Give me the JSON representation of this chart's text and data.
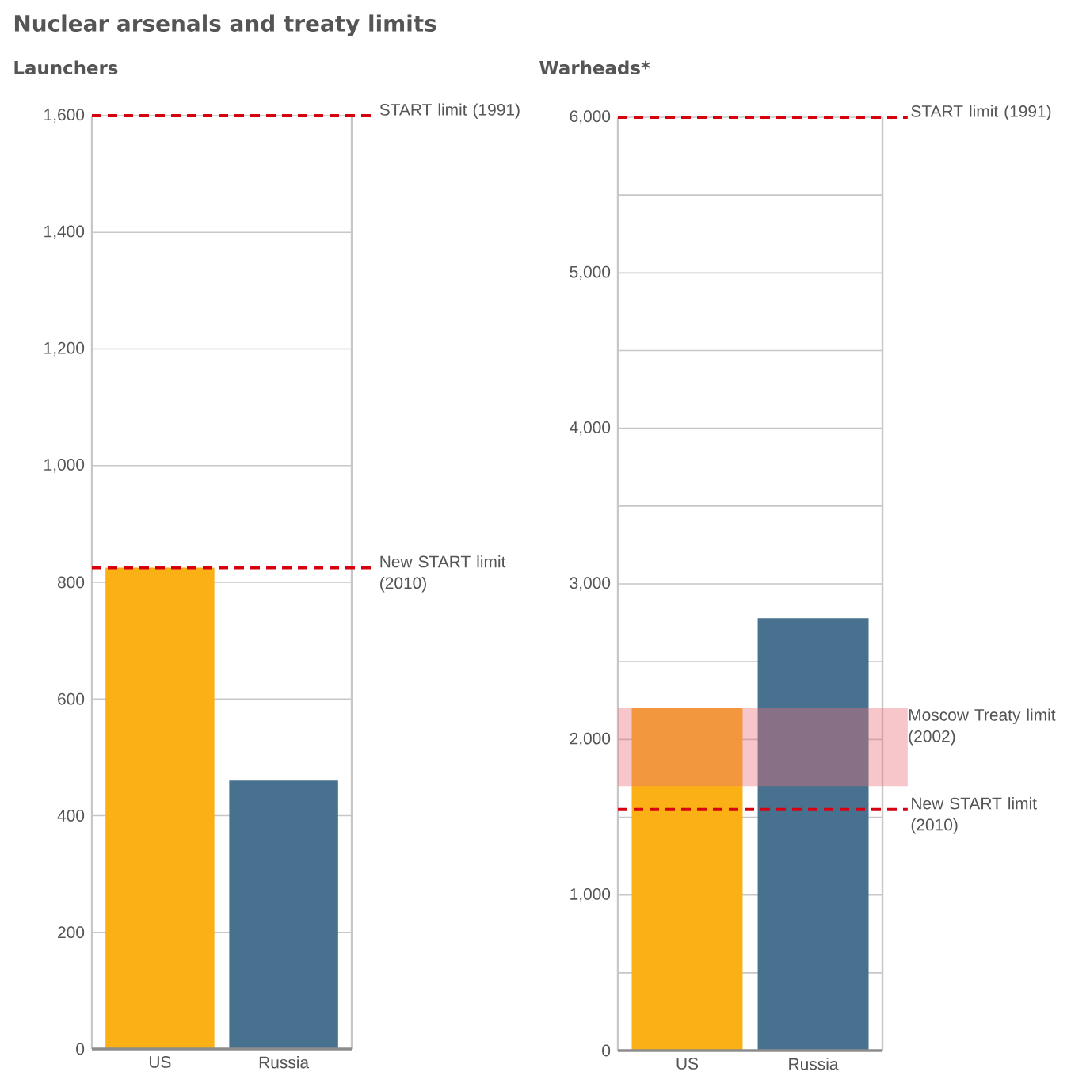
{
  "chart_data": [
    {
      "type": "bar",
      "title": "Nuclear arsenals and treaty limits",
      "subtitle": "Launchers",
      "categories": [
        "US",
        "Russia"
      ],
      "values": [
        825,
        460
      ],
      "colors": [
        "#fbb116",
        "#48708f"
      ],
      "ylim": [
        0,
        1600
      ],
      "yticks": [
        0,
        200,
        400,
        600,
        800,
        {
          "value": 1000,
          "label": "1,000"
        },
        {
          "value": 1200,
          "label": "1,200"
        },
        {
          "value": 1400,
          "label": "1,400"
        },
        {
          "value": 1600,
          "label": "1,600"
        }
      ],
      "grid": "y",
      "ref_lines": [
        {
          "axis": "y",
          "value": 1600,
          "label": "START limit (1991)",
          "color": "#d7000f",
          "line_style": "dashed"
        },
        {
          "axis": "y",
          "value": 825,
          "label": "New START limit (2010)",
          "color": "#d7000f",
          "line_style": "dashed"
        }
      ]
    },
    {
      "type": "bar",
      "title": "Warheads*",
      "categories": [
        "US",
        "Russia"
      ],
      "values": [
        2200,
        2780
      ],
      "colors": [
        "#fbb116",
        "#48708f"
      ],
      "ylim": [
        0,
        6000
      ],
      "yticks": [
        0,
        {
          "value": 500,
          "label": null
        },
        {
          "value": 1000,
          "label": "1,000"
        },
        {
          "value": 1500,
          "label": null
        },
        {
          "value": 2000,
          "label": "2,000"
        },
        {
          "value": 2500,
          "label": null
        },
        {
          "value": 3000,
          "label": "3,000"
        },
        {
          "value": 3500,
          "label": null
        },
        {
          "value": 4000,
          "label": "4,000"
        },
        {
          "value": 4500,
          "label": null
        },
        {
          "value": 5000,
          "label": "5,000"
        },
        {
          "value": 5500,
          "label": null
        },
        {
          "value": 6000,
          "label": "6,000"
        }
      ],
      "grid": "y",
      "ref_lines": [
        {
          "axis": "y",
          "value": 6000,
          "label": "START limit (1991)",
          "color": "#d7000f",
          "line_style": "dashed"
        },
        {
          "axis": "y",
          "value": 1550,
          "label": "New START limit (2010)",
          "color": "#d7000f",
          "line_style": "dashed"
        }
      ],
      "bands": [
        {
          "axis": "y",
          "from": 1700,
          "to": 2200,
          "label": "Moscow Treaty limit (2002)",
          "color": "#e8707a"
        }
      ]
    }
  ]
}
